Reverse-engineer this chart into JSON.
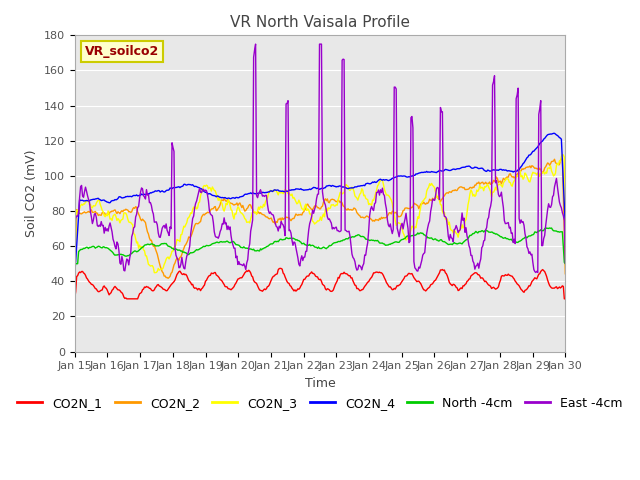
{
  "title": "VR North Vaisala Profile",
  "xlabel": "Time",
  "ylabel": "Soil CO2 (mV)",
  "annotation": "VR_soilco2",
  "ylim": [
    0,
    180
  ],
  "yticks": [
    0,
    20,
    40,
    60,
    80,
    100,
    120,
    140,
    160,
    180
  ],
  "x_labels": [
    "Jan 15",
    "Jan 16",
    "Jan 17",
    "Jan 18",
    "Jan 19",
    "Jan 20",
    "Jan 21",
    "Jan 22",
    "Jan 23",
    "Jan 24",
    "Jan 25",
    "Jan 26",
    "Jan 27",
    "Jan 28",
    "Jan 29",
    "Jan 30"
  ],
  "colors": {
    "CO2N_1": "#ff0000",
    "CO2N_2": "#ff9900",
    "CO2N_3": "#ffff00",
    "CO2N_4": "#0000ff",
    "North -4cm": "#00cc00",
    "East -4cm": "#9900cc"
  },
  "fig_bg": "#ffffff",
  "plot_bg": "#e8e8e8",
  "grid_color": "#ffffff",
  "title_fontsize": 11,
  "label_fontsize": 9,
  "tick_fontsize": 8,
  "legend_fontsize": 9
}
